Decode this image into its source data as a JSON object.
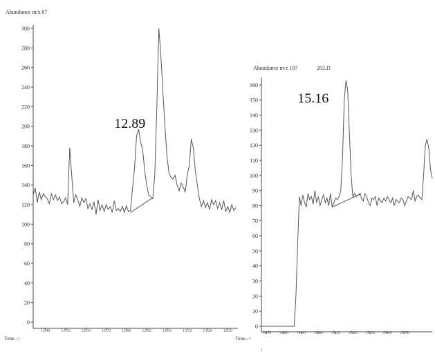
{
  "page_number": "1",
  "chart_data": [
    {
      "type": "line",
      "title": "Abundance m/z 87",
      "xlabel": "Time-->",
      "ylabel": "Abundance",
      "annotation": "12.89",
      "annotation_at": {
        "x": 12.89,
        "y": 197
      },
      "xlim": [
        12.34,
        13.35
      ],
      "ylim": [
        0,
        300
      ],
      "grid": false,
      "y_ticks": [
        0,
        20,
        40,
        60,
        80,
        100,
        120,
        140,
        160,
        180,
        200,
        220,
        240,
        260,
        280,
        300
      ],
      "x_ticks": [
        12.4,
        12.5,
        12.6,
        12.7,
        12.8,
        12.9,
        13.0,
        13.1,
        13.2,
        13.3
      ],
      "x_tick_labels": [
        "12.40",
        "12.50",
        "12.60",
        "12.70",
        "12.80",
        "12.90",
        "13.00",
        "13.10",
        "13.20",
        "13.30"
      ],
      "baseline": [
        [
          12.82,
          112
        ],
        [
          12.93,
          127
        ]
      ],
      "series": [
        {
          "x": [
            12.34,
            12.35,
            12.36,
            12.37,
            12.38,
            12.39,
            12.4,
            12.41,
            12.42,
            12.43,
            12.44,
            12.45,
            12.46,
            12.47,
            12.48,
            12.49,
            12.5,
            12.51,
            12.52,
            12.53,
            12.54,
            12.55,
            12.56,
            12.57,
            12.58,
            12.59,
            12.6,
            12.61,
            12.62,
            12.63,
            12.64,
            12.65,
            12.66,
            12.67,
            12.68,
            12.69,
            12.7,
            12.71,
            12.72,
            12.73,
            12.74,
            12.75,
            12.76,
            12.77,
            12.78,
            12.79,
            12.8,
            12.81,
            12.82,
            12.83,
            12.84,
            12.85,
            12.86,
            12.87,
            12.88,
            12.89,
            12.9,
            12.91,
            12.92,
            12.93,
            12.94,
            12.95,
            12.96,
            12.97,
            12.98,
            12.99,
            13.0,
            13.01,
            13.02,
            13.03,
            13.04,
            13.05,
            13.06,
            13.07,
            13.08,
            13.09,
            13.1,
            13.11,
            13.12,
            13.13,
            13.14,
            13.15,
            13.16,
            13.17,
            13.18,
            13.19,
            13.2,
            13.21,
            13.22,
            13.23,
            13.24,
            13.25,
            13.26,
            13.27,
            13.28,
            13.29,
            13.3,
            13.31,
            13.32,
            13.33,
            13.34
          ],
          "y": [
            130,
            137,
            122,
            133,
            125,
            131,
            128,
            126,
            121,
            131,
            125,
            130,
            124,
            128,
            121,
            123,
            127,
            120,
            178,
            150,
            122,
            130,
            125,
            118,
            127,
            122,
            126,
            116,
            121,
            115,
            123,
            110,
            125,
            114,
            120,
            113,
            120,
            115,
            118,
            112,
            124,
            114,
            116,
            113,
            118,
            112,
            119,
            113,
            114,
            136,
            157,
            190,
            197,
            184,
            176,
            155,
            140,
            130,
            128,
            126,
            150,
            220,
            300,
            272,
            235,
            200,
            170,
            152,
            148,
            146,
            150,
            140,
            134,
            142,
            138,
            133,
            150,
            160,
            187,
            178,
            154,
            140,
            126,
            118,
            124,
            117,
            122,
            115,
            125,
            120,
            124,
            116,
            122,
            115,
            124,
            113,
            118,
            112,
            120,
            114,
            117
          ]
        }
      ]
    },
    {
      "type": "line",
      "title": "Abundance m/z 187",
      "title_note": "202.D",
      "xlabel": "Time-->",
      "ylabel": "Abundance",
      "annotation": "15.16",
      "annotation_at": {
        "x": 15.16,
        "y": 163
      },
      "xlim": [
        14.67,
        15.66
      ],
      "ylim": [
        0,
        165
      ],
      "grid": false,
      "y_ticks": [
        0,
        10,
        20,
        30,
        40,
        50,
        60,
        70,
        80,
        90,
        100,
        110,
        120,
        130,
        140,
        150,
        160
      ],
      "x_ticks": [
        14.7,
        14.8,
        14.9,
        15.0,
        15.1,
        15.2,
        15.3,
        15.4,
        15.5
      ],
      "x_tick_labels": [
        "14.70",
        "14.80",
        "14.90",
        "15.00",
        "15.10",
        "15.20",
        "15.30",
        "15.40",
        "15.50"
      ],
      "baseline": [
        [
          15.08,
          79
        ],
        [
          15.25,
          88
        ]
      ],
      "series": [
        {
          "x": [
            14.67,
            14.7,
            14.73,
            14.74,
            14.75,
            14.77,
            14.78,
            14.79,
            14.8,
            14.81,
            14.82,
            14.83,
            14.84,
            14.85,
            14.86,
            14.87,
            14.88,
            14.89,
            14.9,
            14.91,
            14.92,
            14.93,
            14.94,
            14.95,
            14.96,
            14.97,
            14.98,
            14.99,
            15.0,
            15.01,
            15.02,
            15.03,
            15.04,
            15.05,
            15.06,
            15.07,
            15.08,
            15.09,
            15.1,
            15.11,
            15.12,
            15.13,
            15.14,
            15.15,
            15.16,
            15.17,
            15.18,
            15.19,
            15.2,
            15.21,
            15.22,
            15.23,
            15.24,
            15.25,
            15.26,
            15.27,
            15.28,
            15.29,
            15.3,
            15.31,
            15.32,
            15.33,
            15.34,
            15.35,
            15.36,
            15.37,
            15.38,
            15.39,
            15.4,
            15.41,
            15.42,
            15.43,
            15.44,
            15.45,
            15.46,
            15.47,
            15.48,
            15.49,
            15.5,
            15.51,
            15.52,
            15.53,
            15.54,
            15.55,
            15.56,
            15.57,
            15.58,
            15.59,
            15.6,
            15.61,
            15.62,
            15.63,
            15.64,
            15.65,
            15.66
          ],
          "y": [
            0,
            0,
            0,
            0,
            0,
            0,
            0,
            0,
            0,
            0,
            0,
            0,
            0,
            0,
            0,
            20,
            55,
            86,
            80,
            87,
            82,
            79,
            88,
            84,
            86,
            81,
            90,
            82,
            86,
            80,
            84,
            87,
            82,
            85,
            80,
            88,
            79,
            82,
            85,
            84,
            86,
            90,
            112,
            150,
            163,
            157,
            128,
            100,
            86,
            88,
            86,
            87,
            88,
            85,
            83,
            88,
            86,
            82,
            80,
            85,
            84,
            86,
            80,
            85,
            83,
            82,
            85,
            83,
            86,
            84,
            82,
            85,
            80,
            84,
            83,
            82,
            85,
            84,
            80,
            83,
            86,
            85,
            84,
            90,
            83,
            86,
            87,
            85,
            84,
            100,
            120,
            124,
            118,
            104,
            98
          ]
        }
      ]
    }
  ]
}
